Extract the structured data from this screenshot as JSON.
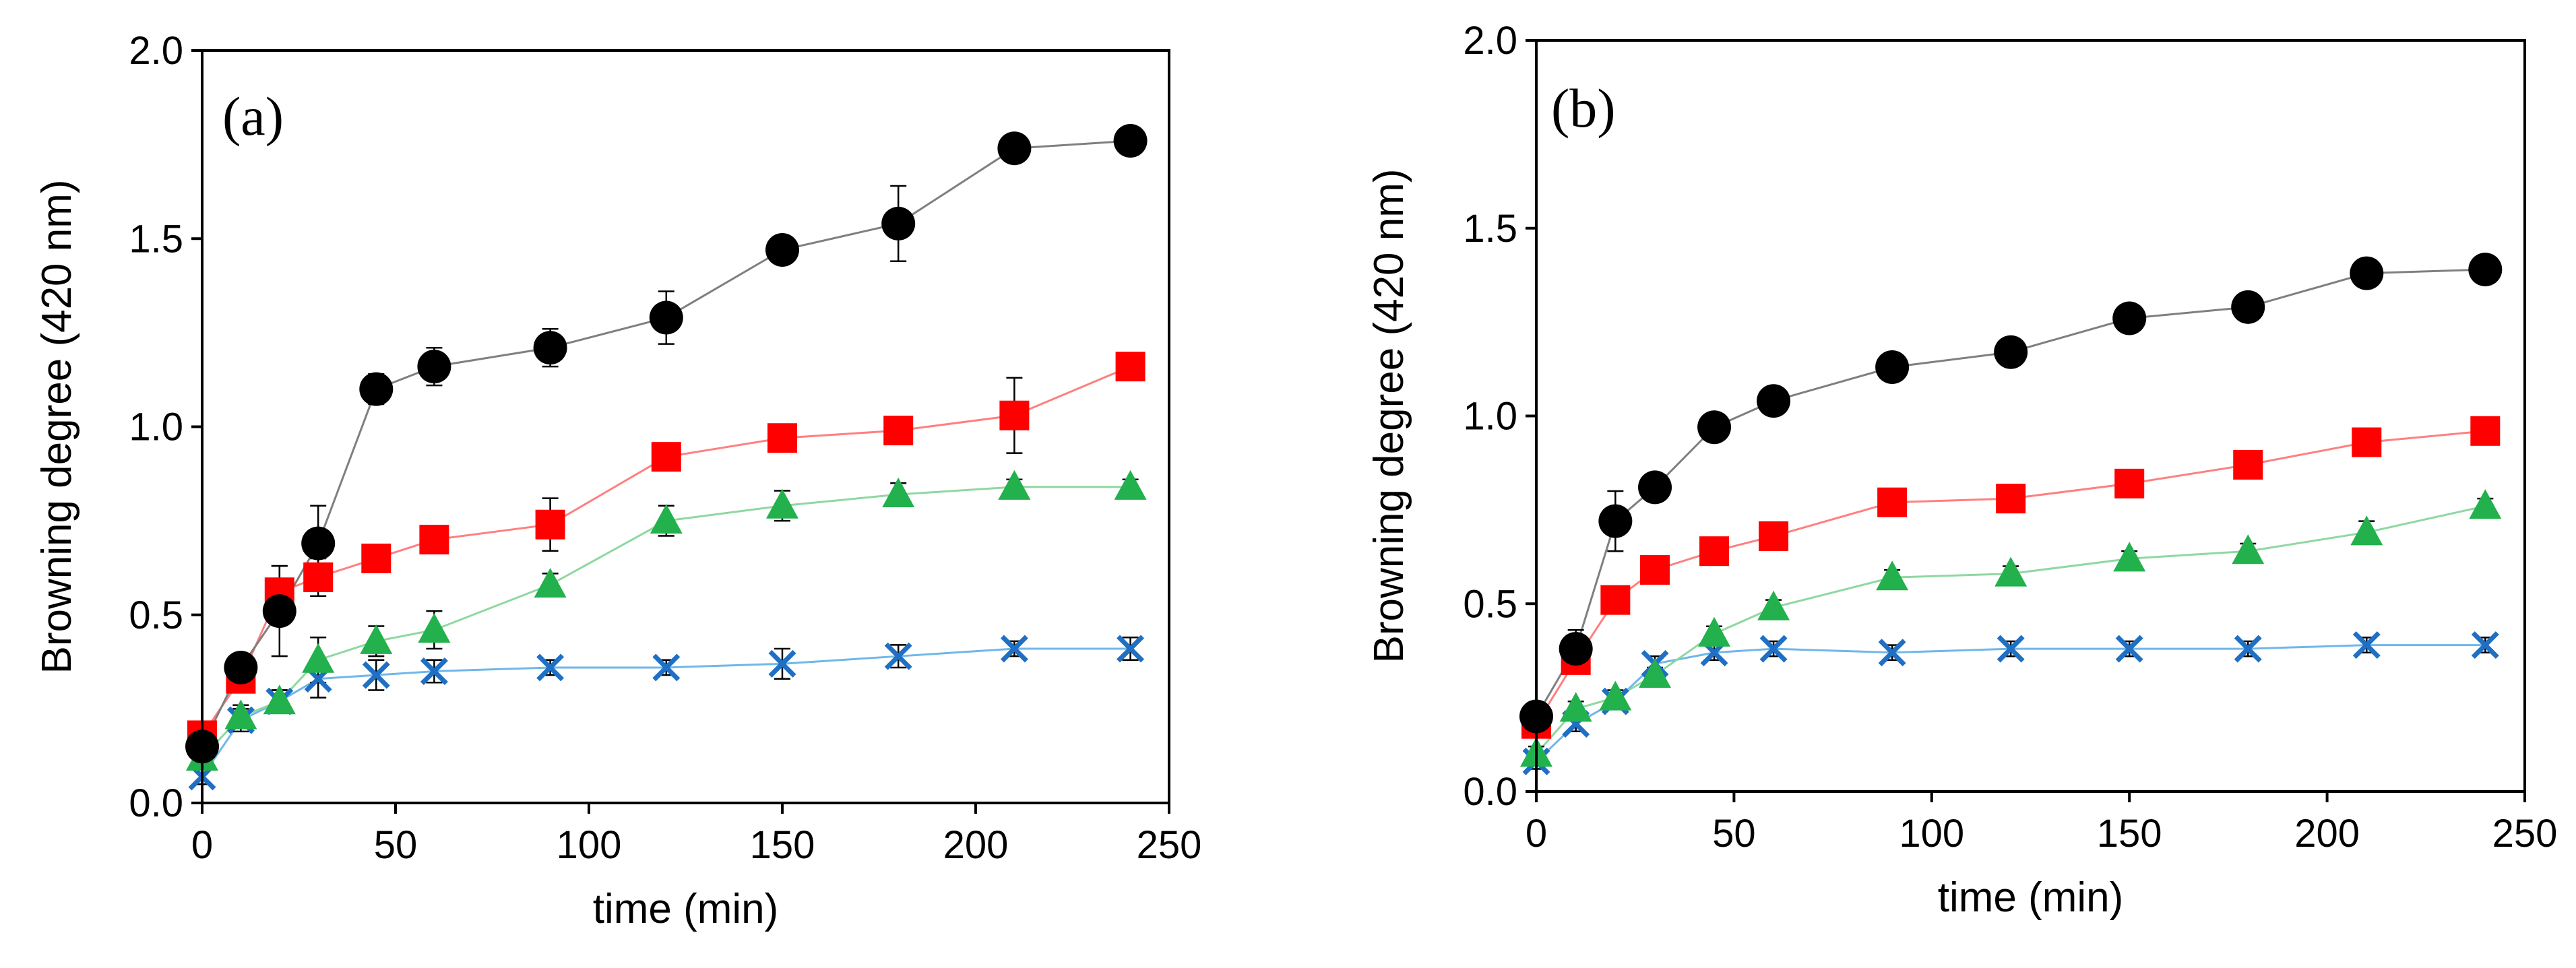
{
  "chart_data": [
    {
      "type": "line",
      "panel_label": "(a)",
      "xlabel": "time (min)",
      "ylabel": "Browning degree (420 nm)",
      "xlim": [
        0,
        250
      ],
      "ylim": [
        0,
        2.0
      ],
      "xticks": [
        "0",
        "50",
        "100",
        "150",
        "200",
        "250"
      ],
      "yticks": [
        "0.0",
        "0.5",
        "1.0",
        "1.5",
        "2.0"
      ],
      "grid": false,
      "legend": "none",
      "x": [
        0,
        10,
        20,
        30,
        45,
        60,
        90,
        120,
        150,
        180,
        210,
        240
      ],
      "series": [
        {
          "marker": "circle",
          "color": "#000000",
          "line_color": "#7f7f7f",
          "values": [
            0.15,
            0.36,
            0.51,
            0.69,
            1.1,
            1.16,
            1.21,
            1.29,
            1.47,
            1.54,
            1.74,
            1.76
          ],
          "errors": [
            0.03,
            0.03,
            0.12,
            0.1,
            0.04,
            0.05,
            0.05,
            0.07,
            0.02,
            0.1,
            0.02,
            0.03
          ]
        },
        {
          "marker": "square",
          "color": "#ff0000",
          "line_color": "#ff7f7f",
          "values": [
            0.18,
            0.33,
            0.56,
            0.6,
            0.65,
            0.7,
            0.74,
            0.92,
            0.97,
            0.99,
            1.03,
            1.16
          ],
          "errors": [
            0.03,
            0.03,
            0.07,
            0.05,
            0.03,
            0.03,
            0.07,
            0.03,
            0.03,
            0.03,
            0.1,
            0.03
          ]
        },
        {
          "marker": "triangle",
          "color": "#22b14c",
          "line_color": "#8fd8a0",
          "values": [
            0.12,
            0.23,
            0.27,
            0.38,
            0.43,
            0.46,
            0.58,
            0.75,
            0.79,
            0.82,
            0.84,
            0.84
          ],
          "errors": [
            0.02,
            0.03,
            0.03,
            0.06,
            0.04,
            0.05,
            0.03,
            0.04,
            0.04,
            0.03,
            0.02,
            0.02
          ]
        },
        {
          "marker": "x",
          "color": "#1f6fc4",
          "line_color": "#6fb7ea",
          "values": [
            0.07,
            0.22,
            0.27,
            0.33,
            0.34,
            0.35,
            0.36,
            0.36,
            0.37,
            0.39,
            0.41,
            0.41
          ],
          "errors": [
            0.02,
            0.03,
            0.03,
            0.05,
            0.04,
            0.03,
            0.02,
            0.02,
            0.04,
            0.03,
            0.02,
            0.03
          ]
        }
      ]
    },
    {
      "type": "line",
      "panel_label": "(b)",
      "xlabel": "time (min)",
      "ylabel": "Browning degree (420 nm)",
      "xlim": [
        0,
        250
      ],
      "ylim": [
        0,
        2.0
      ],
      "xticks": [
        "0",
        "50",
        "100",
        "150",
        "200",
        "250"
      ],
      "yticks": [
        "0.0",
        "0.5",
        "1.0",
        "1.5",
        "2.0"
      ],
      "grid": false,
      "legend": "none",
      "x": [
        0,
        10,
        20,
        30,
        45,
        60,
        90,
        120,
        150,
        180,
        210,
        240
      ],
      "series": [
        {
          "marker": "circle",
          "color": "#000000",
          "line_color": "#7f7f7f",
          "values": [
            0.2,
            0.38,
            0.72,
            0.81,
            0.97,
            1.04,
            1.13,
            1.17,
            1.26,
            1.29,
            1.38,
            1.39
          ],
          "errors": [
            0.02,
            0.05,
            0.08,
            0.02,
            0.02,
            0.02,
            0.02,
            0.02,
            0.02,
            0.02,
            0.02,
            0.02
          ]
        },
        {
          "marker": "square",
          "color": "#ff0000",
          "line_color": "#ff7f7f",
          "values": [
            0.18,
            0.35,
            0.51,
            0.59,
            0.64,
            0.68,
            0.77,
            0.78,
            0.82,
            0.87,
            0.93,
            0.96
          ],
          "errors": [
            0.02,
            0.02,
            0.02,
            0.02,
            0.02,
            0.02,
            0.02,
            0.02,
            0.02,
            0.02,
            0.02,
            0.02
          ]
        },
        {
          "marker": "triangle",
          "color": "#22b14c",
          "line_color": "#8fd8a0",
          "values": [
            0.1,
            0.22,
            0.25,
            0.31,
            0.42,
            0.49,
            0.57,
            0.58,
            0.62,
            0.64,
            0.69,
            0.76
          ],
          "errors": [
            0.02,
            0.02,
            0.02,
            0.02,
            0.02,
            0.02,
            0.02,
            0.02,
            0.02,
            0.02,
            0.03,
            0.02
          ]
        },
        {
          "marker": "x",
          "color": "#1f6fc4",
          "line_color": "#6fb7ea",
          "values": [
            0.08,
            0.18,
            0.24,
            0.34,
            0.37,
            0.38,
            0.37,
            0.38,
            0.38,
            0.38,
            0.39,
            0.39
          ],
          "errors": [
            0.02,
            0.02,
            0.02,
            0.02,
            0.02,
            0.02,
            0.02,
            0.02,
            0.02,
            0.02,
            0.02,
            0.02
          ]
        }
      ]
    }
  ]
}
